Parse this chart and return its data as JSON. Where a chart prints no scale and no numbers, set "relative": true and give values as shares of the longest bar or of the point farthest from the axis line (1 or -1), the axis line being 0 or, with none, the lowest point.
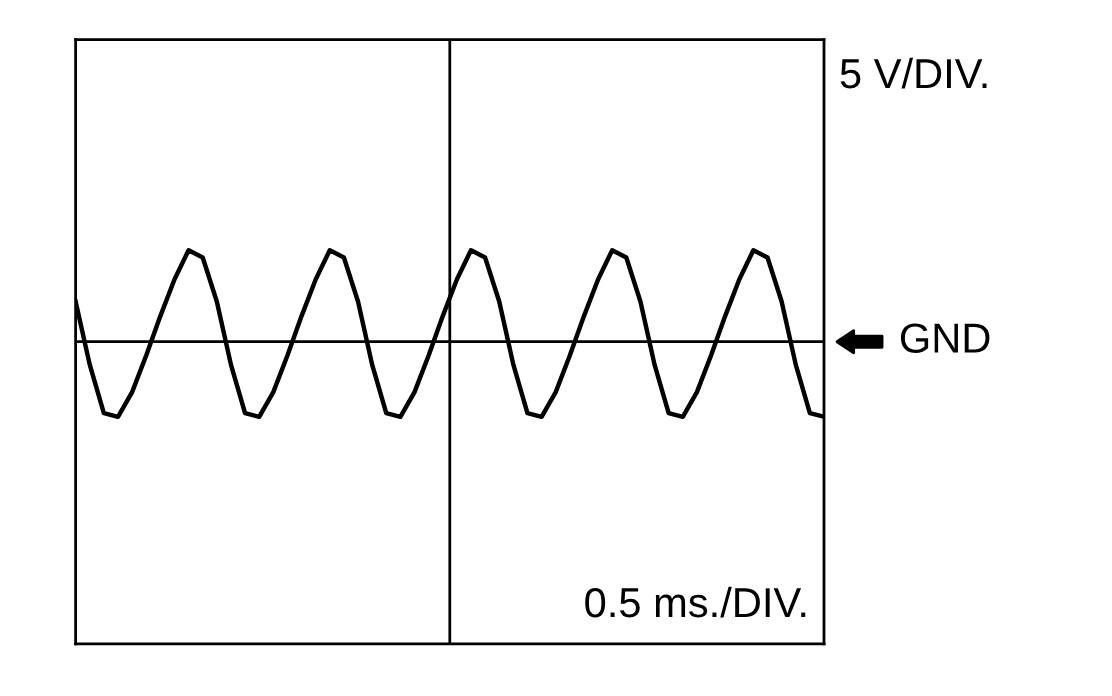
{
  "chart_data": {
    "type": "line",
    "relative": true,
    "categories": [
      null,
      null,
      null,
      null,
      null,
      null,
      null,
      null,
      null,
      null,
      null,
      null,
      null,
      null,
      null,
      null,
      null,
      null,
      null,
      null,
      null,
      null,
      null,
      null,
      null,
      null,
      null,
      null,
      null,
      null,
      null,
      null,
      null,
      null,
      null,
      null,
      null,
      null,
      null,
      null,
      null,
      null,
      null,
      null,
      null,
      null,
      null,
      null,
      null,
      null,
      null,
      null,
      null,
      null
    ],
    "series": [
      {
        "color": "#000000",
        "values": [
          0.44,
          -0.25,
          -0.78,
          -0.82,
          -0.55,
          -0.15,
          0.28,
          0.68,
          1.0,
          0.92,
          0.44,
          -0.25,
          -0.78,
          -0.82,
          -0.55,
          -0.15,
          0.28,
          0.68,
          1.0,
          0.92,
          0.44,
          -0.25,
          -0.78,
          -0.82,
          -0.55,
          -0.15,
          0.28,
          0.68,
          1.0,
          0.92,
          0.44,
          -0.25,
          -0.78,
          -0.82,
          -0.55,
          -0.15,
          0.28,
          0.68,
          1.0,
          0.92,
          0.44,
          -0.25,
          -0.78,
          -0.82,
          -0.55,
          -0.15,
          0.28,
          0.68,
          1.0,
          0.92,
          0.44,
          -0.25,
          -0.78,
          -0.82
        ]
      }
    ],
    "ref_lines": [
      {
        "axis": "y",
        "value": 0,
        "label": "GND",
        "color": "#000000"
      }
    ],
    "annotations": [
      "5 V/DIV.",
      "0.5 ms./DIV."
    ],
    "marker": "none",
    "line_style": "solid",
    "legend": false
  }
}
